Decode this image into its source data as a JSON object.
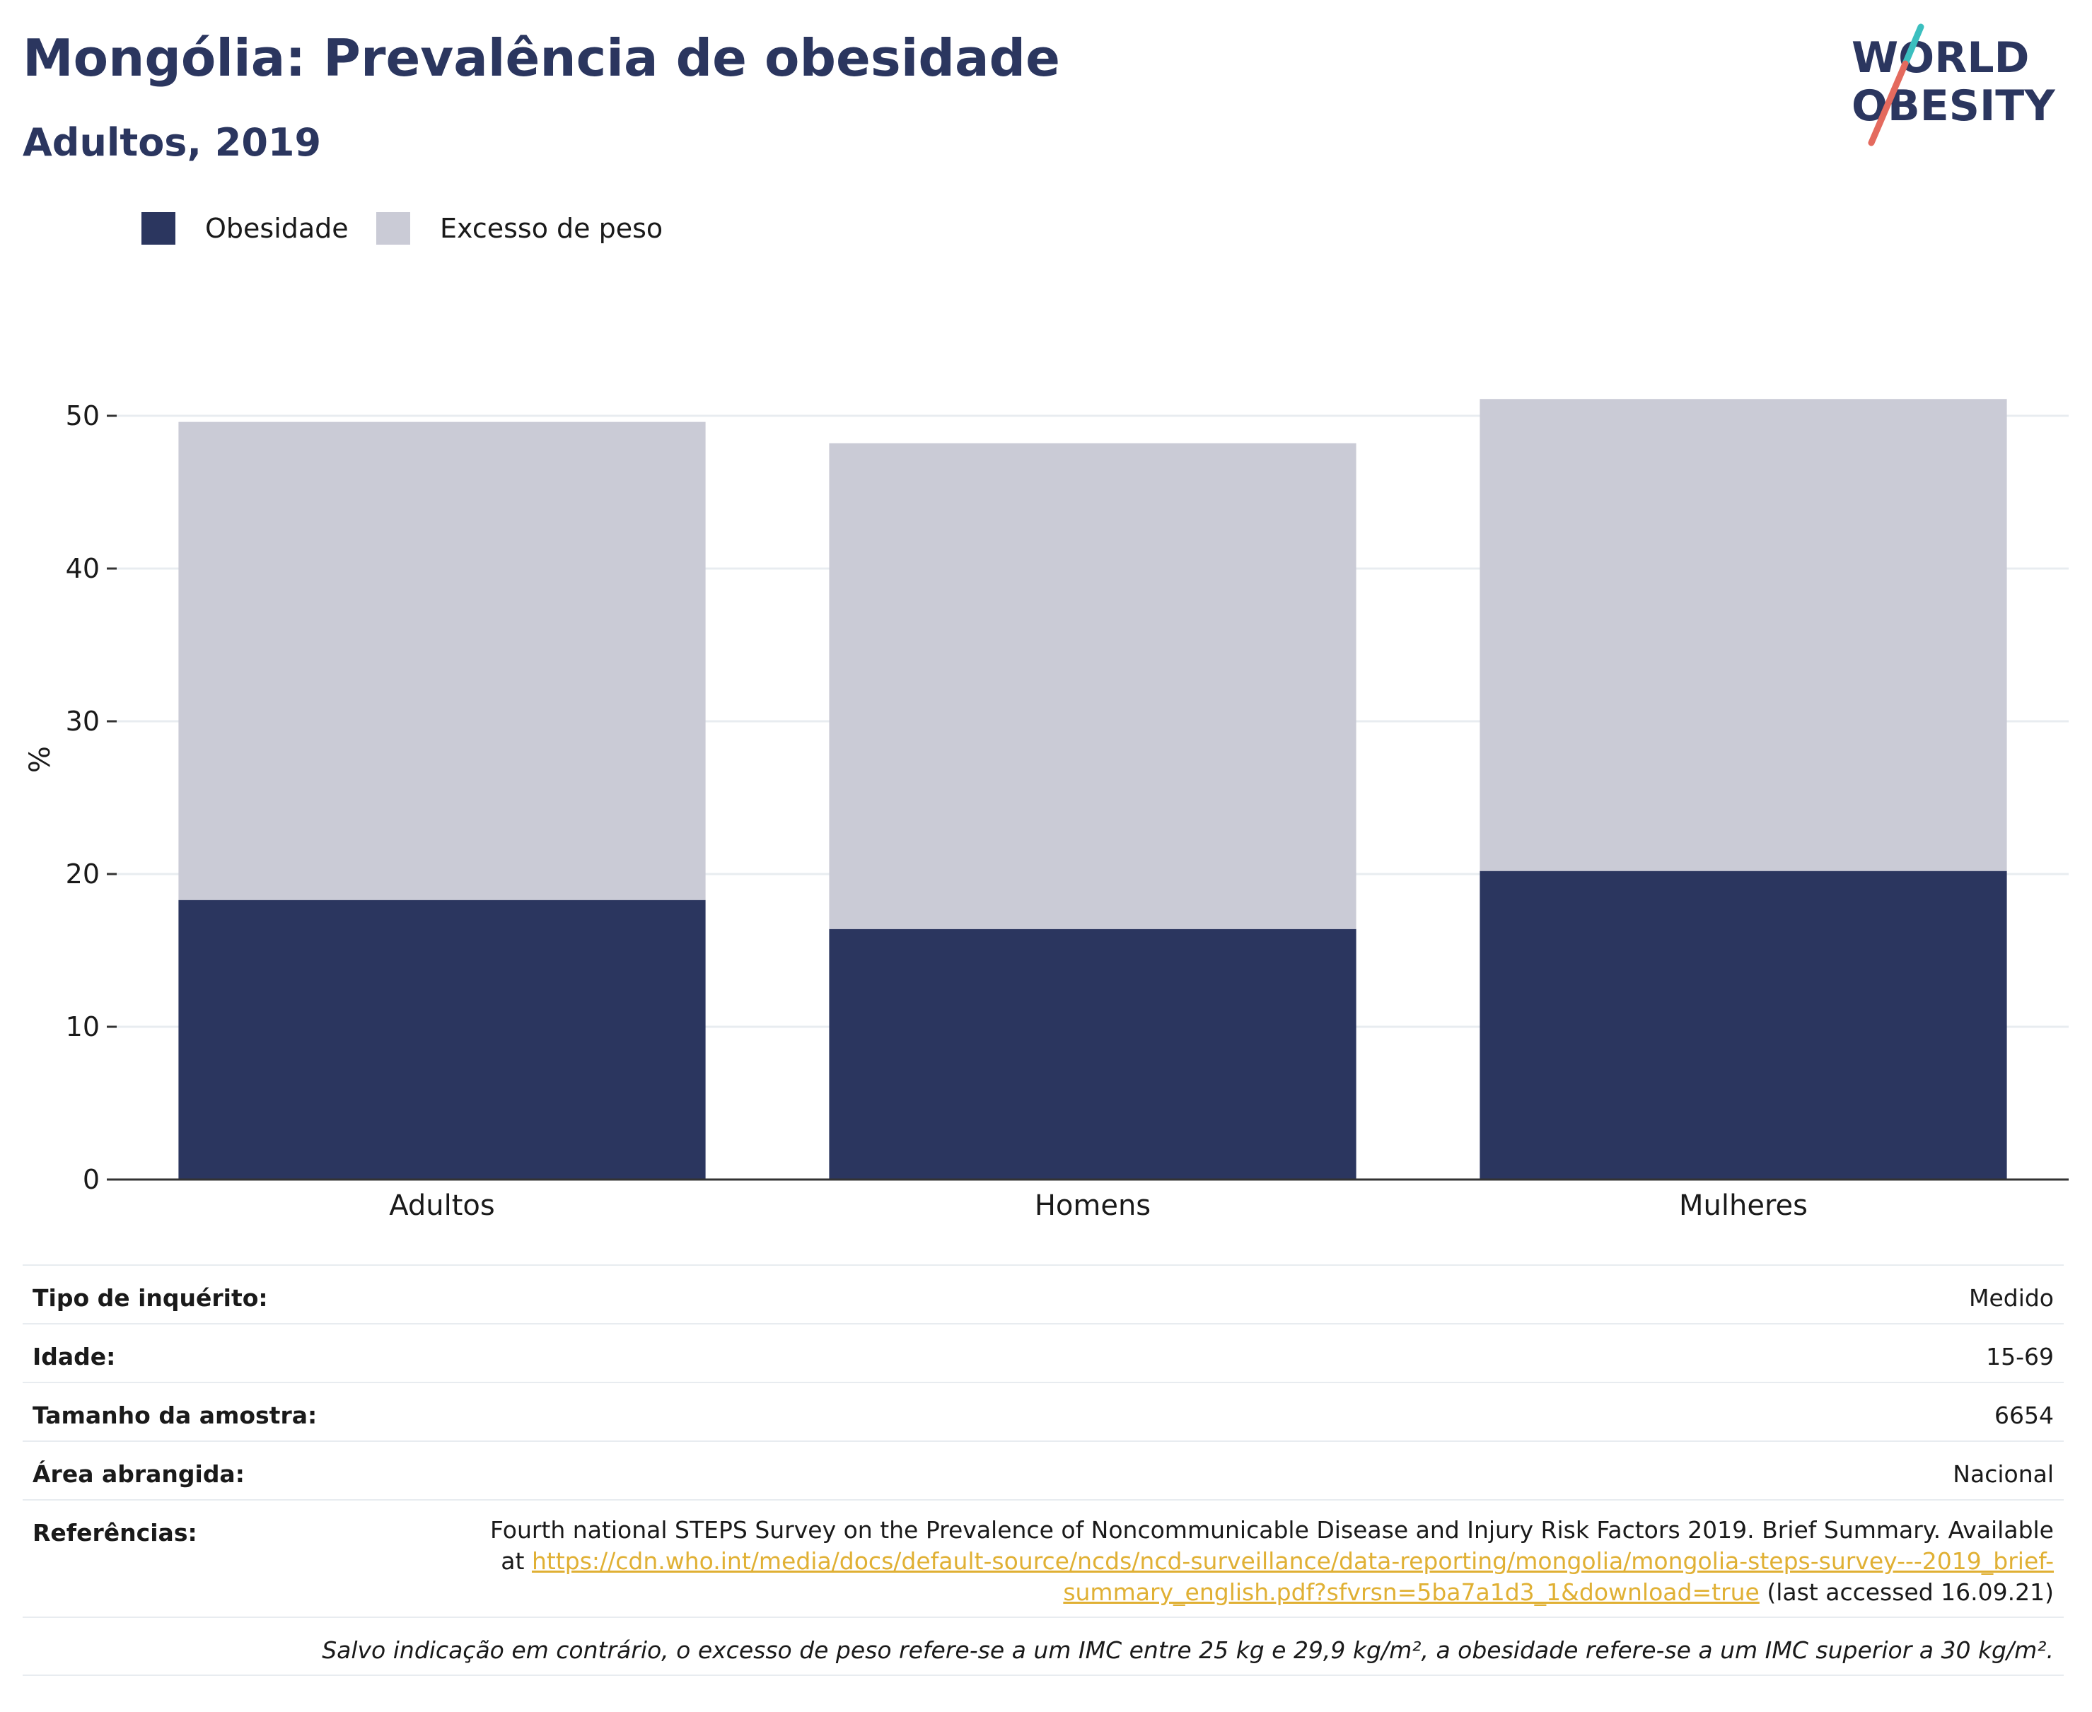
{
  "header": {
    "title": "Mongólia: Prevalência de obesidade",
    "subtitle": "Adultos, 2019"
  },
  "logo": {
    "line1": "WORLD",
    "line2": "OBESITY",
    "colors": {
      "navy": "#2b365f",
      "teal": "#3bbfbf",
      "coral": "#e46a5e"
    }
  },
  "colors": {
    "obesity": "#2b365f",
    "overweight": "#cacbd6",
    "grid": "#e8ecf0",
    "axis": "#333333",
    "link": "#e0b034"
  },
  "chart_data": {
    "type": "bar",
    "stacked": true,
    "categories": [
      "Adultos",
      "Homens",
      "Mulheres"
    ],
    "series": [
      {
        "name": "Obesidade",
        "values": [
          18.3,
          16.4,
          20.2
        ]
      },
      {
        "name": "Excesso de peso",
        "values": [
          31.3,
          31.8,
          30.9
        ]
      }
    ],
    "ylabel": "%",
    "xlabel": "",
    "ylim": [
      0,
      55
    ],
    "yticks": [
      0,
      10,
      20,
      30,
      40,
      50
    ],
    "grid": true,
    "legend": "top-left"
  },
  "meta": {
    "survey_label": "Tipo de inquérito:",
    "survey_value": "Medido",
    "age_label": "Idade:",
    "age_value": "15-69",
    "sample_label": "Tamanho da amostra:",
    "sample_value": "6654",
    "area_label": "Área abrangida:",
    "area_value": "Nacional",
    "refs_label": "Referências:",
    "refs_line1": "Fourth national STEPS Survey on the Prevalence of Noncommunicable Disease and Injury Risk Factors 2019. Brief Summary. Available",
    "refs_at": "at ",
    "refs_link1": "https://cdn.who.int/media/docs/default-source/ncds/ncd-surveillance/data-reporting/mongolia/mongolia-steps-survey---2019_brief-",
    "refs_link2": "summary_english.pdf?sfvrsn=5ba7a1d3_1&download=true",
    "refs_accessed": " (last accessed 16.09.21)",
    "note": "Salvo indicação em contrário, o excesso de peso refere-se a um IMC entre 25 kg e 29,9 kg/m², a obesidade refere-se a um IMC superior a 30 kg/m²."
  }
}
